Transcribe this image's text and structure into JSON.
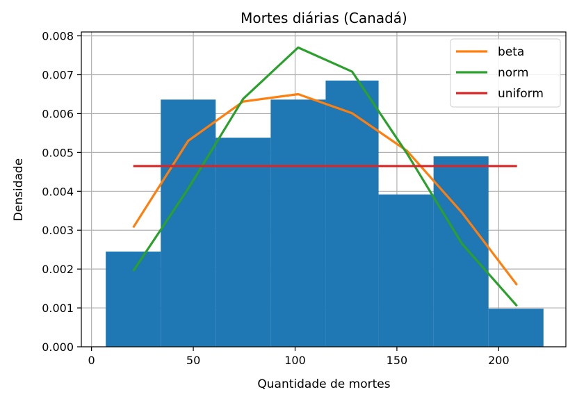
{
  "chart_data": {
    "type": "bar",
    "title": "Mortes diárias (Canadá)",
    "xlabel": "Quantidade de mortes",
    "ylabel": "Densidade",
    "xlim": [
      -5,
      233
    ],
    "ylim": [
      0,
      0.0081
    ],
    "xticks": [
      0,
      50,
      100,
      150,
      200
    ],
    "yticks": [
      0.0,
      0.001,
      0.002,
      0.003,
      0.004,
      0.005,
      0.006,
      0.007,
      0.008
    ],
    "ytick_labels": [
      "0.000",
      "0.001",
      "0.002",
      "0.003",
      "0.004",
      "0.005",
      "0.006",
      "0.007",
      "0.008"
    ],
    "grid": true,
    "legend_position": "top-right",
    "histogram": {
      "color": "#1f77b4",
      "bin_edges": [
        7,
        34,
        61,
        88,
        115,
        141,
        168,
        195,
        222
      ],
      "densities": [
        0.00245,
        0.00636,
        0.00538,
        0.00636,
        0.00685,
        0.00392,
        0.0049,
        0.00098
      ]
    },
    "series": [
      {
        "name": "beta",
        "color": "#ff7f0e",
        "x": [
          20.5,
          47.5,
          74.5,
          101.5,
          128,
          155,
          182,
          209
        ],
        "y": [
          0.00307,
          0.0053,
          0.00631,
          0.0065,
          0.00601,
          0.00504,
          0.00345,
          0.00159
        ]
      },
      {
        "name": "norm",
        "color": "#2ca02c",
        "x": [
          20.5,
          47.5,
          74.5,
          101.5,
          128,
          155,
          182,
          209
        ],
        "y": [
          0.00195,
          0.00407,
          0.00638,
          0.0077,
          0.00708,
          0.00497,
          0.00265,
          0.00105
        ]
      },
      {
        "name": "uniform",
        "color": "#d62728",
        "x": [
          20.5,
          209
        ],
        "y": [
          0.00465,
          0.00465
        ]
      }
    ]
  }
}
